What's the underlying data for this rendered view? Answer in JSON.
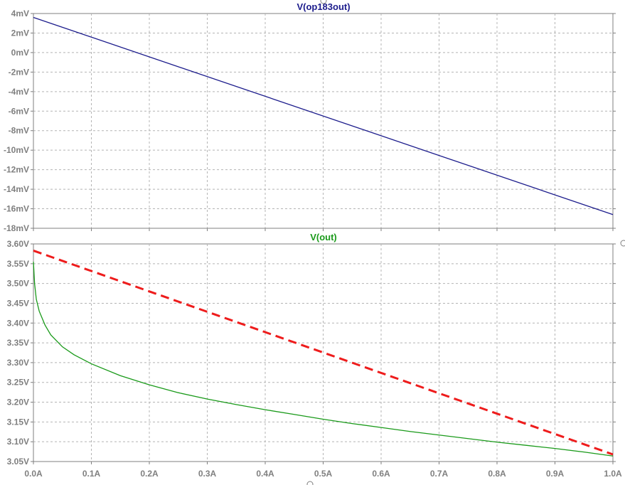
{
  "chart_data": [
    {
      "type": "line",
      "title": "V(op183out)",
      "title_color": "#1c1c8c",
      "xlim": [
        0,
        1.0
      ],
      "ylim": [
        -18,
        4
      ],
      "y_ticks": [
        4,
        2,
        0,
        -2,
        -4,
        -6,
        -8,
        -10,
        -12,
        -14,
        -16,
        -18
      ],
      "y_tick_labels": [
        "4mV",
        "2mV",
        "0mV",
        "-2mV",
        "-4mV",
        "-6mV",
        "-8mV",
        "-10mV",
        "-12mV",
        "-14mV",
        "-16mV",
        "-18mV"
      ],
      "grid": true,
      "series": [
        {
          "color": "#1c1c8c",
          "style": "solid",
          "x": [
            0.0,
            1.0
          ],
          "y": [
            3.6,
            -16.6
          ]
        }
      ]
    },
    {
      "type": "line",
      "title": "V(out)",
      "title_color": "#1a9a1a",
      "xlim": [
        0,
        1.0
      ],
      "ylim": [
        3.05,
        3.6
      ],
      "y_ticks": [
        3.6,
        3.55,
        3.5,
        3.45,
        3.4,
        3.35,
        3.3,
        3.25,
        3.2,
        3.15,
        3.1,
        3.05
      ],
      "y_tick_labels": [
        "3.60V",
        "3.55V",
        "3.50V",
        "3.45V",
        "3.40V",
        "3.35V",
        "3.30V",
        "3.25V",
        "3.20V",
        "3.15V",
        "3.10V",
        "3.05V"
      ],
      "x_ticks": [
        0.0,
        0.1,
        0.2,
        0.3,
        0.4,
        0.5,
        0.6,
        0.7,
        0.8,
        0.9,
        1.0
      ],
      "x_tick_labels": [
        "0.0A",
        "0.1A",
        "0.2A",
        "0.3A",
        "0.4A",
        "0.5A",
        "0.6A",
        "0.7A",
        "0.8A",
        "0.9A",
        "1.0A"
      ],
      "grid": true,
      "series": [
        {
          "color": "#1a9a1a",
          "style": "solid",
          "x": [
            0.0,
            0.002,
            0.005,
            0.01,
            0.02,
            0.03,
            0.05,
            0.07,
            0.1,
            0.15,
            0.2,
            0.25,
            0.3,
            0.35,
            0.4,
            0.45,
            0.5,
            0.55,
            0.6,
            0.65,
            0.7,
            0.75,
            0.8,
            0.85,
            0.9,
            0.95,
            1.0
          ],
          "y": [
            3.555,
            3.5,
            3.46,
            3.43,
            3.395,
            3.37,
            3.34,
            3.32,
            3.297,
            3.267,
            3.244,
            3.224,
            3.208,
            3.194,
            3.181,
            3.169,
            3.157,
            3.146,
            3.136,
            3.126,
            3.117,
            3.108,
            3.099,
            3.091,
            3.083,
            3.074,
            3.064
          ]
        },
        {
          "color": "#ee1c1c",
          "style": "dashed",
          "x": [
            0.0,
            1.0
          ],
          "y": [
            3.583,
            3.068
          ]
        }
      ]
    }
  ]
}
